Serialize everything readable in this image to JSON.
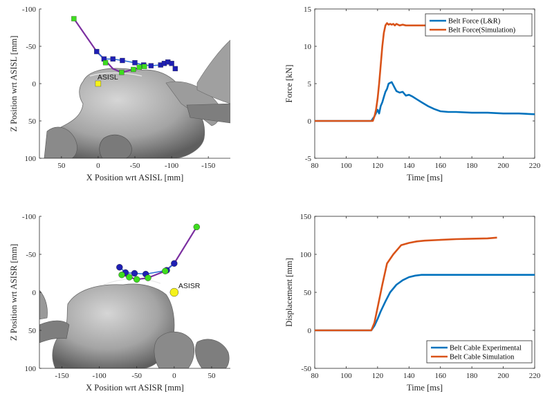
{
  "chart_data": [
    {
      "id": "p1",
      "type": "scatter",
      "xlabel": "X Position wrt ASISL [mm]",
      "ylabel": "Z Position wrt ASISL [mm]",
      "xlim": [
        80,
        -180
      ],
      "ylim": [
        100,
        -100
      ],
      "xticks": [
        50,
        0,
        -50,
        -100,
        -150
      ],
      "yticks": [
        -100,
        -50,
        0,
        50,
        100
      ],
      "reverse_x": true,
      "reverse_y": true,
      "annotation": "ASISL",
      "background": "pelvis bone surface render (gray)",
      "series": [
        {
          "style": "blue squares",
          "color": "#1f1fb4",
          "x": [
            2,
            -8,
            -20,
            -33,
            -50,
            -62,
            -72,
            -85,
            -90,
            -95,
            -100,
            -105
          ],
          "y": [
            -43,
            -33,
            -33,
            -31,
            -28,
            -25,
            -24,
            -25,
            -27,
            -29,
            -27,
            -20
          ]
        },
        {
          "style": "green squares",
          "color": "#3ddc1e",
          "x": [
            33,
            -10,
            -32,
            -48,
            -56,
            -63
          ],
          "y": [
            -87,
            -28,
            -15,
            -19,
            -22,
            -23
          ]
        },
        {
          "style": "purple path",
          "color": "#7b2fa0",
          "x": [
            33,
            2,
            -8,
            -20,
            -32,
            -48,
            -63
          ],
          "y": [
            -87,
            -43,
            -33,
            -20,
            -15,
            -19,
            -23
          ]
        },
        {
          "style": "yellow marker",
          "color": "#f5f21a",
          "x": [
            0
          ],
          "y": [
            0
          ]
        }
      ]
    },
    {
      "id": "p2",
      "type": "line",
      "xlabel": "Time [ms]",
      "ylabel": "Force [kN]",
      "xlim": [
        80,
        220
      ],
      "ylim": [
        -5,
        15
      ],
      "xticks": [
        80,
        100,
        120,
        140,
        160,
        180,
        200,
        220
      ],
      "yticks": [
        -5,
        0,
        5,
        10,
        15
      ],
      "legend_position": "top-right",
      "series": [
        {
          "name": "Belt Force (L&R)",
          "color": "#0072bd",
          "x": [
            80,
            116,
            118,
            120,
            121,
            122,
            123,
            124,
            125,
            126,
            127,
            128,
            129,
            130,
            131,
            132,
            134,
            136,
            138,
            140,
            142,
            145,
            148,
            152,
            156,
            160,
            165,
            170,
            180,
            190,
            200,
            210,
            220
          ],
          "y": [
            0,
            0,
            0.6,
            1.5,
            1.0,
            2.0,
            2.5,
            3.2,
            3.9,
            4.3,
            5.0,
            5.1,
            5.2,
            4.8,
            4.4,
            4.0,
            3.8,
            3.9,
            3.4,
            3.5,
            3.3,
            2.9,
            2.5,
            2.0,
            1.6,
            1.3,
            1.2,
            1.2,
            1.1,
            1.1,
            1.0,
            1.0,
            0.9
          ]
        },
        {
          "name": "Belt Force(Simulation)",
          "color": "#d95319",
          "x": [
            80,
            117,
            118,
            119,
            120,
            121,
            122,
            123,
            124,
            125,
            126,
            127,
            128,
            129,
            130,
            131,
            132,
            133,
            134,
            136,
            138,
            140,
            150,
            160,
            170,
            175
          ],
          "y": [
            0,
            0,
            0.6,
            1.5,
            3,
            5,
            7.5,
            10,
            11.8,
            12.8,
            13.1,
            12.9,
            13.0,
            12.9,
            13.0,
            12.8,
            13.0,
            12.9,
            12.8,
            12.9,
            12.8,
            12.8,
            12.8,
            12.8,
            12.8,
            12.8
          ]
        }
      ]
    },
    {
      "id": "p3",
      "type": "scatter",
      "xlabel": "X Position wrt ASISR [mm]",
      "ylabel": "Z Position wrt ASISR [mm]",
      "xlim": [
        -180,
        75
      ],
      "ylim": [
        100,
        -100
      ],
      "xticks": [
        -150,
        -100,
        -50,
        0,
        50
      ],
      "yticks": [
        -100,
        -50,
        0,
        50,
        100
      ],
      "reverse_y": true,
      "annotation": "ASISR",
      "background": "pelvis bone surface render (gray)",
      "series": [
        {
          "style": "blue circles",
          "color": "#1f1fb4",
          "x": [
            -73,
            -65,
            -53,
            -38,
            -10,
            0
          ],
          "y": [
            -33,
            -26,
            -25,
            -24,
            -29,
            -38
          ]
        },
        {
          "style": "green circles",
          "color": "#3ddc1e",
          "x": [
            30,
            -12,
            -35,
            -50,
            -60,
            -70
          ],
          "y": [
            -86,
            -28,
            -19,
            -17,
            -20,
            -23
          ]
        },
        {
          "style": "purple path",
          "color": "#7b2fa0",
          "x": [
            30,
            0,
            -12,
            -35,
            -50,
            -70
          ],
          "y": [
            -86,
            -38,
            -28,
            -19,
            -17,
            -23
          ]
        },
        {
          "style": "yellow marker",
          "color": "#f5f21a",
          "x": [
            0
          ],
          "y": [
            0
          ]
        }
      ]
    },
    {
      "id": "p4",
      "type": "line",
      "xlabel": "Time [ms]",
      "ylabel": "Displacement [mm]",
      "xlim": [
        80,
        220
      ],
      "ylim": [
        -50,
        150
      ],
      "xticks": [
        80,
        100,
        120,
        140,
        160,
        180,
        200,
        220
      ],
      "yticks": [
        -50,
        0,
        50,
        100,
        150
      ],
      "legend_position": "bottom-right",
      "series": [
        {
          "name": "Belt Cable Experimental",
          "color": "#0072bd",
          "x": [
            80,
            116,
            118,
            120,
            122,
            125,
            128,
            132,
            136,
            140,
            144,
            148,
            155,
            170,
            190,
            220
          ],
          "y": [
            0,
            0,
            6,
            15,
            25,
            38,
            50,
            60,
            66,
            70,
            72,
            73,
            73,
            73,
            73,
            73
          ]
        },
        {
          "name": "Belt Cable Simulation",
          "color": "#d95319",
          "x": [
            80,
            116,
            118,
            120,
            123,
            126,
            130,
            135,
            140,
            145,
            150,
            160,
            170,
            180,
            190,
            196
          ],
          "y": [
            0,
            0,
            10,
            30,
            60,
            88,
            100,
            112,
            115,
            117,
            118,
            119,
            120,
            120.5,
            121,
            122
          ]
        }
      ]
    }
  ]
}
